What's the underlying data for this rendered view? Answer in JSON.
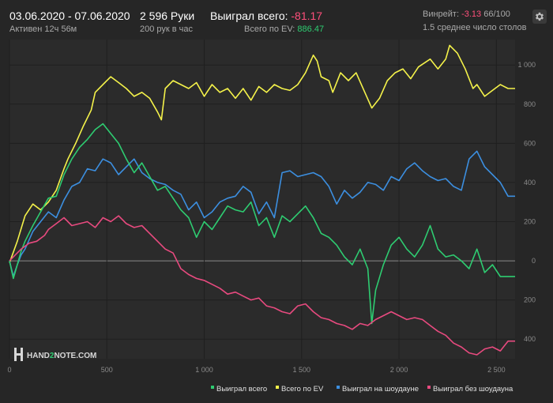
{
  "header": {
    "date_range": "03.06.2020 - 07.06.2020",
    "active": "Активен 12ч 56м",
    "hands": "2 596 Руки",
    "per_hour": "200 рук в час",
    "won_label": "Выиграл всего:",
    "won_value": "-81.17",
    "ev_label": "Всего по EV:",
    "ev_value": "886.47",
    "winrate_label": "Винрейт:",
    "winrate_value": "-3.13",
    "winrate_tail": "66/100",
    "avg_tables": "1.5 среднее число столов"
  },
  "logo": {
    "part1": "HAND",
    "part2": "2",
    "part3": "NOTE.COM"
  },
  "colors": {
    "background": "#262626",
    "won": "#2ecc71",
    "ev": "#f4f24a",
    "showdown": "#3c8fe0",
    "non_showdown": "#e84a7f",
    "negative": "#ff4f7b"
  },
  "chart_data": {
    "type": "line",
    "xlim": [
      0,
      2596
    ],
    "ylim": [
      -500,
      1130
    ],
    "x_ticks": [
      {
        "v": 0,
        "label": "0"
      },
      {
        "v": 500,
        "label": "500"
      },
      {
        "v": 1000,
        "label": "1 000"
      },
      {
        "v": 1500,
        "label": "1 500"
      },
      {
        "v": 2000,
        "label": "2 000"
      },
      {
        "v": 2500,
        "label": "2 500"
      }
    ],
    "y_ticks": [
      {
        "v": 1000,
        "label": "1 000"
      },
      {
        "v": 800,
        "label": "800"
      },
      {
        "v": 600,
        "label": "600"
      },
      {
        "v": 400,
        "label": "400"
      },
      {
        "v": 200,
        "label": "200"
      },
      {
        "v": 0,
        "label": "0"
      },
      {
        "v": -200,
        "label": "200"
      },
      {
        "v": -400,
        "label": "400"
      }
    ],
    "series": [
      {
        "name": "Всего по EV",
        "key": "ev",
        "color": "#f4f24a",
        "x": [
          0,
          40,
          80,
          120,
          160,
          200,
          240,
          280,
          300,
          340,
          380,
          420,
          440,
          480,
          520,
          560,
          600,
          640,
          680,
          720,
          760,
          780,
          800,
          840,
          880,
          920,
          960,
          1000,
          1040,
          1080,
          1120,
          1160,
          1200,
          1240,
          1280,
          1320,
          1360,
          1400,
          1440,
          1480,
          1520,
          1560,
          1580,
          1600,
          1640,
          1660,
          1700,
          1740,
          1780,
          1820,
          1860,
          1900,
          1940,
          1980,
          2020,
          2060,
          2100,
          2160,
          2200,
          2240,
          2260,
          2300,
          2340,
          2380,
          2400,
          2440,
          2480,
          2520,
          2560,
          2596
        ],
        "y": [
          -10,
          100,
          230,
          290,
          260,
          300,
          360,
          470,
          520,
          600,
          690,
          770,
          860,
          900,
          940,
          910,
          880,
          840,
          860,
          830,
          760,
          720,
          880,
          920,
          900,
          880,
          910,
          840,
          900,
          860,
          880,
          830,
          880,
          820,
          890,
          860,
          900,
          880,
          870,
          900,
          960,
          1050,
          1020,
          940,
          920,
          860,
          960,
          920,
          960,
          870,
          780,
          830,
          920,
          960,
          980,
          930,
          990,
          1030,
          980,
          1030,
          1100,
          1060,
          980,
          880,
          900,
          840,
          870,
          900,
          880,
          880
        ]
      },
      {
        "name": "Выиграл на шоудауне",
        "key": "showdown",
        "color": "#3c8fe0",
        "x": [
          0,
          20,
          40,
          60,
          80,
          120,
          160,
          200,
          240,
          280,
          320,
          360,
          400,
          440,
          480,
          520,
          560,
          600,
          640,
          680,
          720,
          760,
          800,
          840,
          880,
          920,
          960,
          1000,
          1040,
          1080,
          1120,
          1160,
          1200,
          1240,
          1280,
          1320,
          1360,
          1400,
          1440,
          1480,
          1520,
          1560,
          1600,
          1640,
          1680,
          1720,
          1760,
          1800,
          1840,
          1880,
          1920,
          1960,
          2000,
          2040,
          2080,
          2120,
          2160,
          2200,
          2240,
          2280,
          2320,
          2360,
          2400,
          2440,
          2480,
          2520,
          2560,
          2596
        ],
        "y": [
          0,
          -80,
          -20,
          30,
          60,
          150,
          200,
          250,
          220,
          310,
          380,
          400,
          470,
          460,
          520,
          500,
          440,
          480,
          520,
          450,
          420,
          400,
          390,
          360,
          340,
          260,
          300,
          220,
          250,
          300,
          320,
          330,
          380,
          350,
          240,
          300,
          220,
          450,
          460,
          430,
          440,
          450,
          430,
          380,
          290,
          360,
          320,
          350,
          400,
          390,
          360,
          430,
          410,
          470,
          500,
          460,
          430,
          410,
          420,
          380,
          360,
          520,
          560,
          480,
          440,
          400,
          330,
          330
        ]
      },
      {
        "name": "Выиграл всего",
        "key": "won",
        "color": "#2ecc71",
        "x": [
          0,
          20,
          40,
          60,
          80,
          120,
          160,
          200,
          240,
          280,
          320,
          360,
          400,
          440,
          480,
          520,
          560,
          600,
          640,
          680,
          720,
          760,
          800,
          840,
          880,
          920,
          960,
          1000,
          1040,
          1080,
          1120,
          1160,
          1200,
          1240,
          1280,
          1320,
          1360,
          1400,
          1440,
          1480,
          1520,
          1560,
          1600,
          1640,
          1680,
          1720,
          1760,
          1800,
          1840,
          1860,
          1880,
          1920,
          1960,
          2000,
          2040,
          2080,
          2120,
          2160,
          2200,
          2240,
          2280,
          2320,
          2360,
          2400,
          2440,
          2480,
          2520,
          2560,
          2596
        ],
        "y": [
          0,
          -90,
          -20,
          50,
          100,
          180,
          250,
          320,
          330,
          440,
          520,
          580,
          620,
          670,
          700,
          650,
          600,
          520,
          450,
          500,
          430,
          360,
          380,
          320,
          260,
          220,
          120,
          200,
          160,
          220,
          280,
          260,
          250,
          300,
          180,
          220,
          120,
          230,
          200,
          240,
          280,
          220,
          140,
          120,
          80,
          20,
          -20,
          60,
          -40,
          -320,
          -150,
          -20,
          80,
          120,
          60,
          20,
          80,
          180,
          60,
          20,
          30,
          0,
          -40,
          60,
          -60,
          -20,
          -80,
          -80,
          -80
        ]
      },
      {
        "name": "Выиграл без шоудауна",
        "key": "non_showdown",
        "color": "#e84a7f",
        "x": [
          0,
          30,
          60,
          100,
          140,
          180,
          200,
          240,
          280,
          320,
          360,
          400,
          440,
          480,
          520,
          560,
          600,
          640,
          680,
          720,
          760,
          800,
          840,
          880,
          920,
          960,
          1000,
          1040,
          1080,
          1120,
          1160,
          1200,
          1240,
          1280,
          1320,
          1360,
          1400,
          1440,
          1480,
          1520,
          1560,
          1600,
          1640,
          1680,
          1720,
          1760,
          1800,
          1840,
          1880,
          1920,
          1960,
          2000,
          2040,
          2080,
          2120,
          2160,
          2200,
          2240,
          2280,
          2320,
          2360,
          2400,
          2440,
          2480,
          2520,
          2560,
          2596
        ],
        "y": [
          0,
          30,
          60,
          90,
          100,
          130,
          160,
          190,
          220,
          180,
          190,
          200,
          170,
          220,
          200,
          230,
          190,
          170,
          180,
          140,
          100,
          60,
          40,
          -40,
          -70,
          -90,
          -100,
          -120,
          -140,
          -170,
          -160,
          -180,
          -200,
          -190,
          -230,
          -240,
          -260,
          -270,
          -230,
          -220,
          -260,
          -290,
          -300,
          -320,
          -330,
          -350,
          -320,
          -330,
          -300,
          -280,
          -260,
          -280,
          -300,
          -290,
          -300,
          -330,
          -360,
          -380,
          -420,
          -440,
          -470,
          -480,
          -450,
          -440,
          -460,
          -410,
          -410
        ]
      }
    ]
  },
  "legend": [
    {
      "label": "Выиграл всего",
      "key": "won",
      "color": "#2ecc71"
    },
    {
      "label": "Всего по EV",
      "key": "ev",
      "color": "#f4f24a"
    },
    {
      "label": "Выиграл на шоудауне",
      "key": "showdown",
      "color": "#3c8fe0"
    },
    {
      "label": "Выиграл без шоудауна",
      "key": "non_showdown",
      "color": "#e84a7f"
    }
  ]
}
